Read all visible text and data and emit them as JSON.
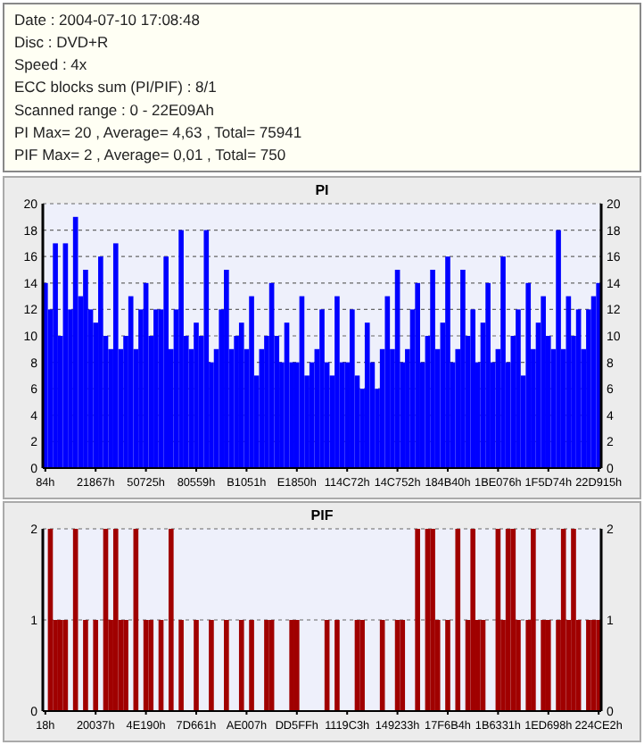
{
  "chart_data": [
    {
      "type": "other",
      "annotations": [
        "Date : 2004-07-10 17:08:48",
        "Disc : DVD+R",
        "Speed : 4x",
        "ECC blocks sum (PI/PIF) : 8/1",
        "Scanned range : 0 - 22E09Ah",
        "PI Max= 20 , Average= 4,63 , Total= 75941",
        "PIF Max= 2 , Average= 0,01 , Total= 750"
      ]
    },
    {
      "type": "bar",
      "title": "PI",
      "color": "#0000ff",
      "ylim": [
        0,
        20
      ],
      "yticks": [
        0,
        2,
        4,
        6,
        8,
        10,
        12,
        14,
        16,
        18,
        20
      ],
      "y2lim": [
        0,
        20
      ],
      "y2ticks": [
        0,
        2,
        4,
        6,
        8,
        10,
        12,
        14,
        16,
        18,
        20
      ],
      "grid": "y",
      "categories": [
        "84h",
        null,
        null,
        null,
        null,
        null,
        null,
        null,
        null,
        null,
        "21867h",
        null,
        null,
        null,
        null,
        null,
        null,
        null,
        null,
        null,
        "50725h",
        null,
        null,
        null,
        null,
        null,
        null,
        null,
        null,
        null,
        "80559h",
        null,
        null,
        null,
        null,
        null,
        null,
        null,
        null,
        null,
        "B1051h",
        null,
        null,
        null,
        null,
        null,
        null,
        null,
        null,
        null,
        "E1850h",
        null,
        null,
        null,
        null,
        null,
        null,
        null,
        null,
        null,
        "114C72h",
        null,
        null,
        null,
        null,
        null,
        null,
        null,
        null,
        null,
        "14C752h",
        null,
        null,
        null,
        null,
        null,
        null,
        null,
        null,
        null,
        "184B40h",
        null,
        null,
        null,
        null,
        null,
        null,
        null,
        null,
        null,
        "1BE076h",
        null,
        null,
        null,
        null,
        null,
        null,
        null,
        null,
        null,
        "1F5D74h",
        null,
        null,
        null,
        null,
        null,
        null,
        null,
        null,
        null,
        "22D915h"
      ],
      "values": [
        14,
        12,
        17,
        10,
        17,
        12,
        19,
        13,
        15,
        12,
        11,
        16,
        10,
        9,
        17,
        9,
        10,
        13,
        9,
        12,
        14,
        10,
        12,
        12,
        16,
        9,
        12,
        18,
        10,
        9,
        11,
        10,
        18,
        8,
        9,
        12,
        15,
        9,
        10,
        11,
        9,
        13,
        7,
        9,
        10,
        14,
        10,
        8,
        11,
        8,
        8,
        13,
        7,
        8,
        9,
        12,
        8,
        7,
        13,
        8,
        8,
        12,
        7,
        6,
        11,
        8,
        6,
        9,
        13,
        9,
        15,
        8,
        9,
        12,
        14,
        8,
        10,
        15,
        9,
        11,
        16,
        8,
        9,
        15,
        10,
        12,
        8,
        11,
        14,
        8,
        9,
        16,
        8,
        10,
        12,
        7,
        14,
        9,
        11,
        13,
        10,
        9,
        18,
        9,
        13,
        10,
        12,
        9,
        12,
        13,
        14
      ]
    },
    {
      "type": "bar",
      "title": "PIF",
      "color": "#a00000",
      "ylim": [
        0,
        2
      ],
      "yticks": [
        0,
        1,
        2
      ],
      "y2lim": [
        0,
        2
      ],
      "y2ticks": [
        0,
        1,
        2
      ],
      "grid": "y",
      "categories": [
        "18h",
        null,
        null,
        null,
        null,
        null,
        null,
        null,
        null,
        null,
        "20037h",
        null,
        null,
        null,
        null,
        null,
        null,
        null,
        null,
        null,
        "4E190h",
        null,
        null,
        null,
        null,
        null,
        null,
        null,
        null,
        null,
        "7D661h",
        null,
        null,
        null,
        null,
        null,
        null,
        null,
        null,
        null,
        "AE007h",
        null,
        null,
        null,
        null,
        null,
        null,
        null,
        null,
        null,
        "DD5FFh",
        null,
        null,
        null,
        null,
        null,
        null,
        null,
        null,
        null,
        "1119C3h",
        null,
        null,
        null,
        null,
        null,
        null,
        null,
        null,
        null,
        "149233h",
        null,
        null,
        null,
        null,
        null,
        null,
        null,
        null,
        null,
        "17F6B4h",
        null,
        null,
        null,
        null,
        null,
        null,
        null,
        null,
        null,
        "1B6331h",
        null,
        null,
        null,
        null,
        null,
        null,
        null,
        null,
        null,
        "1ED698h",
        null,
        null,
        null,
        null,
        null,
        null,
        null,
        null,
        null,
        "224CE2h"
      ],
      "values": [
        0,
        2,
        1,
        1,
        1,
        0,
        2,
        0,
        1,
        0,
        1,
        0,
        2,
        1,
        2,
        1,
        1,
        0,
        2,
        0,
        1,
        1,
        0,
        1,
        0,
        2,
        0,
        1,
        0,
        0,
        1,
        0,
        0,
        1,
        0,
        0,
        1,
        0,
        0,
        1,
        0,
        1,
        0,
        0,
        1,
        1,
        0,
        0,
        0,
        1,
        1,
        0,
        0,
        0,
        0,
        0,
        1,
        0,
        1,
        0,
        0,
        0,
        1,
        1,
        0,
        0,
        0,
        1,
        0,
        0,
        1,
        1,
        0,
        0,
        2,
        0,
        2,
        2,
        1,
        0,
        1,
        0,
        2,
        0,
        1,
        2,
        1,
        1,
        0,
        0,
        2,
        1,
        2,
        2,
        1,
        0,
        1,
        2,
        0,
        1,
        1,
        0,
        1,
        2,
        1,
        2,
        1,
        0,
        1,
        1,
        1
      ]
    }
  ]
}
